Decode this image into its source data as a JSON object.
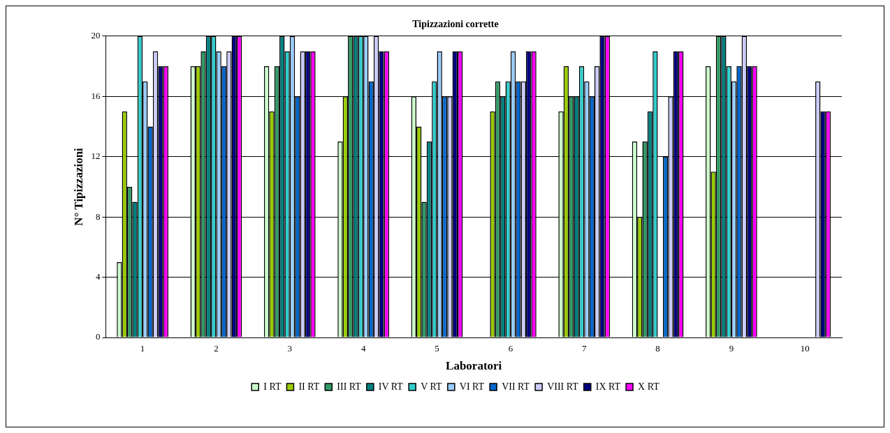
{
  "chart_data": {
    "type": "bar",
    "title": "Tipizzazioni corrette",
    "xlabel": "Laboratori",
    "ylabel": "N° Tipizzazioni",
    "categories": [
      "1",
      "2",
      "3",
      "4",
      "5",
      "6",
      "7",
      "8",
      "9",
      "10"
    ],
    "ylim": [
      0,
      20
    ],
    "yticks": [
      0,
      4,
      8,
      12,
      16,
      20
    ],
    "grid": "y",
    "legend": "bottom",
    "series": [
      {
        "name": "I RT",
        "color": "#ccffcc",
        "values": [
          5,
          18,
          18,
          13,
          16,
          0,
          15,
          13,
          18,
          0
        ]
      },
      {
        "name": "II RT",
        "color": "#99cc00",
        "values": [
          15,
          18,
          15,
          16,
          14,
          15,
          18,
          8,
          11,
          0
        ]
      },
      {
        "name": "III RT",
        "color": "#339966",
        "values": [
          10,
          19,
          18,
          20,
          9,
          17,
          16,
          13,
          20,
          0
        ]
      },
      {
        "name": "IV RT",
        "color": "#008080",
        "values": [
          9,
          20,
          20,
          20,
          13,
          16,
          16,
          15,
          20,
          0
        ]
      },
      {
        "name": "V RT",
        "color": "#33cccc",
        "values": [
          20,
          20,
          19,
          20,
          17,
          17,
          18,
          19,
          18,
          0
        ]
      },
      {
        "name": "VI RT",
        "color": "#99ccff",
        "values": [
          17,
          19,
          20,
          20,
          19,
          19,
          17,
          0,
          17,
          0
        ]
      },
      {
        "name": "VII RT",
        "color": "#0066cc",
        "values": [
          14,
          18,
          16,
          17,
          16,
          17,
          16,
          12,
          18,
          0
        ]
      },
      {
        "name": "VIII RT",
        "color": "#ccccff",
        "values": [
          19,
          19,
          19,
          20,
          16,
          17,
          18,
          16,
          20,
          17
        ]
      },
      {
        "name": "IX RT",
        "color": "#000080",
        "values": [
          18,
          20,
          19,
          19,
          19,
          19,
          20,
          19,
          18,
          15
        ]
      },
      {
        "name": "X RT",
        "color": "#ff00ff",
        "values": [
          18,
          20,
          19,
          19,
          19,
          19,
          20,
          19,
          18,
          15
        ]
      }
    ]
  }
}
